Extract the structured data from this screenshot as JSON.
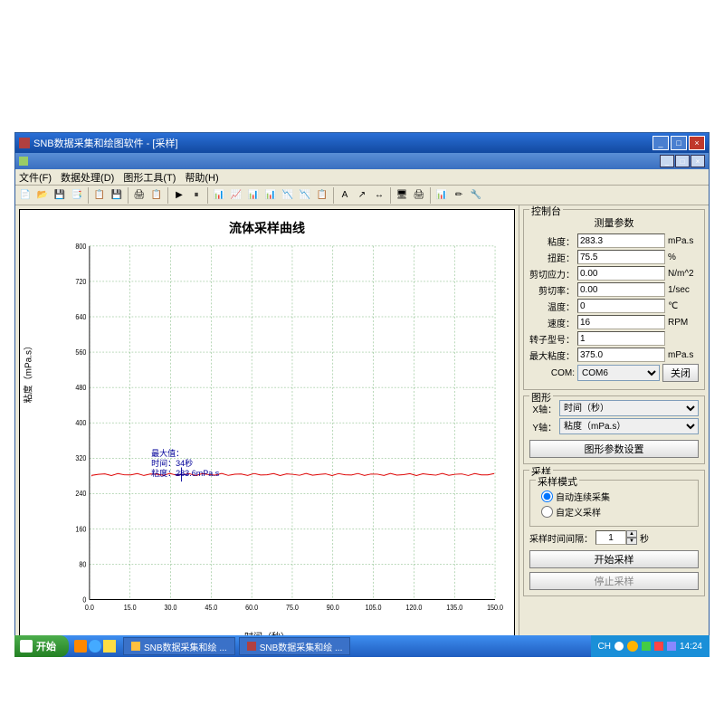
{
  "window": {
    "title": "SNB数据采集和绘图软件 - [采样]",
    "sub_title": "",
    "min": "_",
    "max": "□",
    "close": "×"
  },
  "menu": {
    "file": "文件(F)",
    "data": "数据处理(D)",
    "tools": "图形工具(T)",
    "help": "帮助(H)"
  },
  "toolbar_icons": [
    "📄",
    "📂",
    "💾",
    "📑",
    "",
    "📋",
    "💾",
    "",
    "🖨",
    "📋",
    "",
    "▶",
    "⏸",
    "",
    "📊",
    "📈",
    "📊",
    "📊",
    "📉",
    "📉",
    "📋",
    "",
    "A",
    "↗",
    "↔",
    "",
    "🖥",
    "🖨",
    "",
    "📊",
    "✏",
    "🔧"
  ],
  "chart": {
    "type": "line",
    "title": "流体采样曲线",
    "x_label": "时间（秒）",
    "y_label": "粘度（mPa.s）",
    "xlim": [
      0,
      150
    ],
    "ylim": [
      0,
      800
    ],
    "x_ticks": [
      "0.0",
      "15.0",
      "30.0",
      "45.0",
      "60.0",
      "75.0",
      "90.0",
      "105.0",
      "120.0",
      "135.0",
      "150.0"
    ],
    "y_ticks": [
      "0",
      "80",
      "160",
      "240",
      "320",
      "400",
      "480",
      "560",
      "640",
      "720",
      "800"
    ],
    "background": "#ffffff",
    "grid_color": "#66aa66",
    "line_color": "#dd0000",
    "axis_color": "#000000",
    "data_y": 283,
    "annot": {
      "l1": "最大值：",
      "l2": "时间：34秒",
      "l3": "粘度：283.6mPa.s"
    },
    "marker_x": 34
  },
  "control": {
    "panel_title": "控制台",
    "section_params": "测量参数",
    "fields": {
      "viscosity": {
        "label": "粘度：",
        "value": "283.3",
        "unit": "mPa.s"
      },
      "torque": {
        "label": "扭距：",
        "value": "75.5",
        "unit": "%"
      },
      "stress": {
        "label": "剪切应力：",
        "value": "0.00",
        "unit": "N/m^2"
      },
      "rate": {
        "label": "剪切率：",
        "value": "0.00",
        "unit": "1/sec"
      },
      "temp": {
        "label": "温度：",
        "value": "0",
        "unit": "℃"
      },
      "speed": {
        "label": "速度：",
        "value": "16",
        "unit": "RPM"
      },
      "rotor": {
        "label": "转子型号：",
        "value": "1",
        "unit": ""
      },
      "maxvisc": {
        "label": "最大粘度：",
        "value": "375.0",
        "unit": "mPa.s"
      },
      "com": {
        "label": "COM:",
        "value": "COM6",
        "unit": ""
      }
    },
    "close_btn": "关闭",
    "graph_section": "图形",
    "x_axis_label": "X轴：",
    "x_axis_value": "时间（秒）",
    "y_axis_label": "Y轴：",
    "y_axis_value": "粘度（mPa.s）",
    "graph_settings_btn": "图形参数设置",
    "sample_section": "采样",
    "mode_label": "采样模式",
    "mode_auto": "自动连续采集",
    "mode_custom": "自定义采样",
    "interval_label": "采样时间间隔：",
    "interval_value": "1",
    "interval_unit": "秒",
    "start_btn": "开始采样",
    "stop_btn": "停止采样"
  },
  "taskbar": {
    "start": "开始",
    "items": [
      "SNB数据采集和绘 ...",
      "SNB数据采集和绘 ..."
    ],
    "lang": "CH",
    "time": "14:24"
  }
}
